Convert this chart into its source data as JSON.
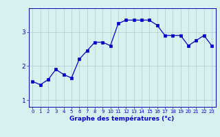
{
  "x": [
    0,
    1,
    2,
    3,
    4,
    5,
    6,
    7,
    8,
    9,
    10,
    11,
    12,
    13,
    14,
    15,
    16,
    17,
    18,
    19,
    20,
    21,
    22,
    23
  ],
  "y": [
    1.55,
    1.45,
    1.6,
    1.9,
    1.75,
    1.65,
    2.2,
    2.45,
    2.7,
    2.7,
    2.6,
    3.25,
    3.35,
    3.35,
    3.35,
    3.35,
    3.2,
    2.9,
    2.9,
    2.9,
    2.6,
    2.75,
    2.9,
    2.6
  ],
  "xlabel": "Graphe des températures (°c)",
  "xlim": [
    -0.5,
    23.5
  ],
  "ylim": [
    0.8,
    3.7
  ],
  "yticks": [
    1,
    2,
    3
  ],
  "xticks": [
    0,
    1,
    2,
    3,
    4,
    5,
    6,
    7,
    8,
    9,
    10,
    11,
    12,
    13,
    14,
    15,
    16,
    17,
    18,
    19,
    20,
    21,
    22,
    23
  ],
  "line_color": "#0000cc",
  "marker": "s",
  "marker_size": 2.5,
  "bg_color": "#d9f0f0",
  "grid_color": "#aacccc",
  "axis_label_color": "#0000cc",
  "tick_label_color": "#0000cc",
  "spine_color": "#0000aa"
}
